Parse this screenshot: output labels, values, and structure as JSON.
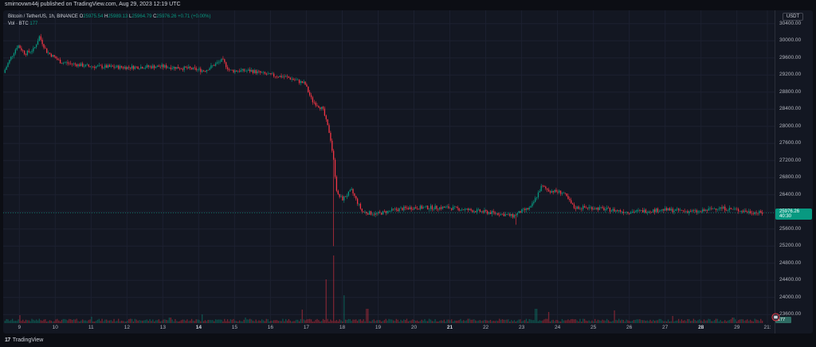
{
  "publish": "smirnovwn44j published on TradingView.com, Aug 29, 2023 12:19 UTC",
  "legend": {
    "title": "Bitcoin / TetherUS, 1h, BINANCE",
    "o_key": "O",
    "o_val": "25975.54",
    "h_key": "H",
    "h_val": "25989.13",
    "l_key": "L",
    "l_val": "25964.79",
    "c_key": "C",
    "c_val": "25976.26",
    "change": "+0.71 (+0.00%)",
    "vol_key": "Vol · BTC",
    "vol_val": "177"
  },
  "currency": "USDT",
  "price_tag": {
    "price": "25976.26",
    "countdown": "40:30"
  },
  "vol_tag": "177",
  "footer": {
    "mark": "17",
    "brand": "TradingView"
  },
  "colors": {
    "up": "#089981",
    "down": "#f23645",
    "bg": "#131722",
    "grid": "#1c2030"
  },
  "chart_data": {
    "type": "candlestick",
    "symbol": "Bitcoin / TetherUS",
    "interval": "1h",
    "exchange": "BINANCE",
    "ylim": [
      23400,
      30600
    ],
    "y_ticks": [
      30400,
      30000,
      29600,
      29200,
      28800,
      28400,
      28000,
      27600,
      27200,
      26800,
      26400,
      26000,
      25600,
      25200,
      24800,
      24400,
      24000,
      23600
    ],
    "y_tick_labels": [
      "30400.00",
      "30000.00",
      "29600.00",
      "29200.00",
      "28800.00",
      "28400.00",
      "28000.00",
      "27600.00",
      "27200.00",
      "26800.00",
      "26400.00",
      "26000.00",
      "25600.00",
      "25200.00",
      "24800.00",
      "24400.00",
      "24000.00",
      "23600.00"
    ],
    "x_ticks": [
      {
        "label": "9",
        "day": 9
      },
      {
        "label": "10",
        "day": 10
      },
      {
        "label": "11",
        "day": 11
      },
      {
        "label": "12",
        "day": 12
      },
      {
        "label": "13",
        "day": 13
      },
      {
        "label": "14",
        "day": 14,
        "bold": true
      },
      {
        "label": "15",
        "day": 15
      },
      {
        "label": "16",
        "day": 16
      },
      {
        "label": "17",
        "day": 17
      },
      {
        "label": "18",
        "day": 18
      },
      {
        "label": "19",
        "day": 19
      },
      {
        "label": "20",
        "day": 20
      },
      {
        "label": "21",
        "day": 21,
        "bold": true
      },
      {
        "label": "22",
        "day": 22
      },
      {
        "label": "23",
        "day": 23
      },
      {
        "label": "24",
        "day": 24
      },
      {
        "label": "25",
        "day": 25
      },
      {
        "label": "26",
        "day": 26
      },
      {
        "label": "27",
        "day": 27
      },
      {
        "label": "28",
        "day": 28,
        "bold": true
      },
      {
        "label": "29",
        "day": 29
      },
      {
        "label": "21:",
        "day": 29.85
      }
    ],
    "x_range_days": [
      8.55,
      30.05
    ],
    "price_path": [
      [
        8.6,
        29250
      ],
      [
        8.8,
        29600
      ],
      [
        9.0,
        29900
      ],
      [
        9.2,
        29700
      ],
      [
        9.45,
        29800
      ],
      [
        9.6,
        30100
      ],
      [
        9.8,
        29750
      ],
      [
        10.2,
        29500
      ],
      [
        11,
        29400
      ],
      [
        12,
        29380
      ],
      [
        13,
        29400
      ],
      [
        13.8,
        29350
      ],
      [
        14.2,
        29300
      ],
      [
        14.7,
        29550
      ],
      [
        14.9,
        29300
      ],
      [
        15.5,
        29300
      ],
      [
        16,
        29200
      ],
      [
        16.5,
        29150
      ],
      [
        17.0,
        29000
      ],
      [
        17.2,
        28600
      ],
      [
        17.5,
        28400
      ],
      [
        17.7,
        27800
      ],
      [
        17.8,
        27200
      ],
      [
        17.9,
        26400
      ],
      [
        18.05,
        26300
      ],
      [
        18.3,
        26500
      ],
      [
        18.6,
        26000
      ],
      [
        19,
        25950
      ],
      [
        19.5,
        26050
      ],
      [
        20,
        26100
      ],
      [
        21,
        26100
      ],
      [
        22,
        26000
      ],
      [
        22.5,
        25950
      ],
      [
        22.8,
        25900
      ],
      [
        23.0,
        26000
      ],
      [
        23.3,
        26100
      ],
      [
        23.6,
        26600
      ],
      [
        23.8,
        26500
      ],
      [
        24.2,
        26450
      ],
      [
        24.5,
        26100
      ],
      [
        25,
        26100
      ],
      [
        25.5,
        26050
      ],
      [
        26,
        26000
      ],
      [
        27,
        26050
      ],
      [
        28,
        26000
      ],
      [
        28.5,
        26100
      ],
      [
        29.0,
        26050
      ],
      [
        29.4,
        26000
      ],
      [
        29.7,
        25976
      ]
    ],
    "volume_peaks": [
      {
        "day": 9.0,
        "vol": 0.1
      },
      {
        "day": 11.0,
        "vol": 0.08
      },
      {
        "day": 13.2,
        "vol": 0.07
      },
      {
        "day": 14.1,
        "vol": 0.11
      },
      {
        "day": 15.3,
        "vol": 0.07
      },
      {
        "day": 16.9,
        "vol": 0.17
      },
      {
        "day": 17.55,
        "vol": 0.55
      },
      {
        "day": 17.75,
        "vol": 0.85
      },
      {
        "day": 18.05,
        "vol": 0.35
      },
      {
        "day": 18.7,
        "vol": 0.18
      },
      {
        "day": 23.4,
        "vol": 0.18
      },
      {
        "day": 23.75,
        "vol": 0.14
      },
      {
        "day": 25.6,
        "vol": 0.16
      },
      {
        "day": 27.2,
        "vol": 0.09
      },
      {
        "day": 28.9,
        "vol": 0.07
      }
    ]
  }
}
